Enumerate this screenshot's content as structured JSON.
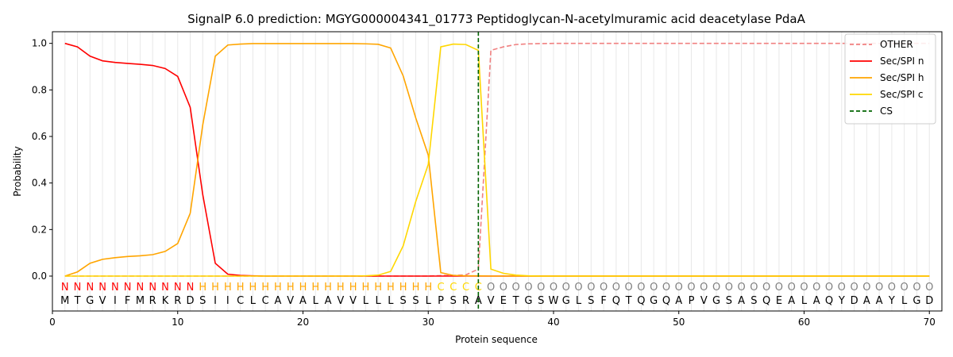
{
  "chart_data": {
    "type": "line",
    "title": "SignalP 6.0 prediction: MGYG000004341_01773 Peptidoglycan-N-acetylmuramic acid deacetylase PdaA",
    "xlabel": "Protein sequence",
    "ylabel": "Probability",
    "xlim": [
      0,
      71
    ],
    "ylim": [
      -0.15,
      1.05
    ],
    "xticks": [
      0,
      10,
      20,
      30,
      40,
      50,
      60,
      70
    ],
    "yticks": [
      0.0,
      0.2,
      0.4,
      0.6,
      0.8,
      1.0
    ],
    "legend_position": "top-right",
    "sequence": [
      "M",
      "T",
      "G",
      "V",
      "I",
      "F",
      "M",
      "R",
      "K",
      "R",
      "D",
      "S",
      "I",
      "I",
      "C",
      "L",
      "C",
      "A",
      "V",
      "A",
      "L",
      "A",
      "V",
      "V",
      "L",
      "L",
      "L",
      "S",
      "S",
      "L",
      "P",
      "S",
      "R",
      "A",
      "V",
      "E",
      "T",
      "G",
      "S",
      "W",
      "G",
      "L",
      "S",
      "F",
      "Q",
      "T",
      "Q",
      "G",
      "Q",
      "A",
      "P",
      "V",
      "G",
      "S",
      "A",
      "S",
      "Q",
      "E",
      "A",
      "L",
      "A",
      "Q",
      "Y",
      "D",
      "A",
      "A",
      "Y",
      "L",
      "G",
      "D"
    ],
    "labels": [
      "N",
      "N",
      "N",
      "N",
      "N",
      "N",
      "N",
      "N",
      "N",
      "N",
      "N",
      "H",
      "H",
      "H",
      "H",
      "H",
      "H",
      "H",
      "H",
      "H",
      "H",
      "H",
      "H",
      "H",
      "H",
      "H",
      "H",
      "H",
      "H",
      "H",
      "C",
      "C",
      "C",
      "C",
      "O",
      "O",
      "O",
      "O",
      "O",
      "O",
      "O",
      "O",
      "O",
      "O",
      "O",
      "O",
      "O",
      "O",
      "O",
      "O",
      "O",
      "O",
      "O",
      "O",
      "O",
      "O",
      "O",
      "O",
      "O",
      "O",
      "O",
      "O",
      "O",
      "O",
      "O",
      "O",
      "O",
      "O",
      "O",
      "O"
    ],
    "label_colors": {
      "N": "#ff0000",
      "H": "#ffa500",
      "C": "#ffd700",
      "O": "#808080"
    },
    "series": [
      {
        "name": "OTHER",
        "color": "#f08080",
        "dash": true,
        "values": [
          0,
          0,
          0,
          0,
          0,
          0,
          0,
          0,
          0,
          0,
          0,
          0,
          0,
          0,
          0,
          0,
          0,
          0,
          0,
          0,
          0,
          0,
          0,
          0,
          0,
          0,
          0,
          0,
          0,
          0,
          0.002,
          0.003,
          0.005,
          0.03,
          0.97,
          0.985,
          0.995,
          0.998,
          0.999,
          1,
          1,
          1,
          1,
          1,
          1,
          1,
          1,
          1,
          1,
          1,
          1,
          1,
          1,
          1,
          1,
          1,
          1,
          1,
          1,
          1,
          1,
          1,
          1,
          1,
          1,
          1,
          1,
          1,
          1,
          1
        ]
      },
      {
        "name": "Sec/SPI n",
        "color": "#ff0000",
        "dash": false,
        "values": [
          1.0,
          0.985,
          0.945,
          0.925,
          0.918,
          0.914,
          0.91,
          0.905,
          0.892,
          0.858,
          0.725,
          0.35,
          0.055,
          0.008,
          0.003,
          0.001,
          0,
          0,
          0,
          0,
          0,
          0,
          0,
          0,
          0,
          0,
          0,
          0,
          0,
          0,
          0,
          0,
          0,
          0,
          0,
          0,
          0,
          0,
          0,
          0,
          0,
          0,
          0,
          0,
          0,
          0,
          0,
          0,
          0,
          0,
          0,
          0,
          0,
          0,
          0,
          0,
          0,
          0,
          0,
          0,
          0,
          0,
          0,
          0,
          0,
          0,
          0,
          0,
          0,
          0
        ]
      },
      {
        "name": "Sec/SPI h",
        "color": "#ffa500",
        "dash": false,
        "values": [
          0.0,
          0.018,
          0.055,
          0.072,
          0.079,
          0.084,
          0.087,
          0.092,
          0.106,
          0.14,
          0.27,
          0.65,
          0.945,
          0.993,
          0.997,
          0.999,
          0.999,
          0.999,
          0.999,
          0.999,
          0.999,
          0.999,
          0.999,
          0.999,
          0.998,
          0.996,
          0.98,
          0.86,
          0.68,
          0.52,
          0.015,
          0.003,
          0.001,
          0.001,
          0,
          0,
          0,
          0,
          0,
          0,
          0,
          0,
          0,
          0,
          0,
          0,
          0,
          0,
          0,
          0,
          0,
          0,
          0,
          0,
          0,
          0,
          0,
          0,
          0,
          0,
          0,
          0,
          0,
          0,
          0,
          0,
          0,
          0,
          0,
          0
        ]
      },
      {
        "name": "Sec/SPI c",
        "color": "#ffd700",
        "dash": false,
        "values": [
          0,
          0,
          0,
          0,
          0,
          0,
          0,
          0,
          0,
          0,
          0,
          0,
          0,
          0,
          0,
          0,
          0,
          0,
          0,
          0,
          0,
          0,
          0,
          0,
          0.001,
          0.004,
          0.02,
          0.13,
          0.32,
          0.48,
          0.985,
          0.997,
          0.995,
          0.97,
          0.03,
          0.012,
          0.004,
          0.001,
          0,
          0,
          0,
          0,
          0,
          0,
          0,
          0,
          0,
          0,
          0,
          0,
          0,
          0,
          0,
          0,
          0,
          0,
          0,
          0,
          0,
          0,
          0,
          0,
          0,
          0,
          0,
          0,
          0,
          0,
          0,
          0
        ]
      }
    ],
    "cs": {
      "name": "CS",
      "color": "#006400",
      "x": 34
    }
  }
}
